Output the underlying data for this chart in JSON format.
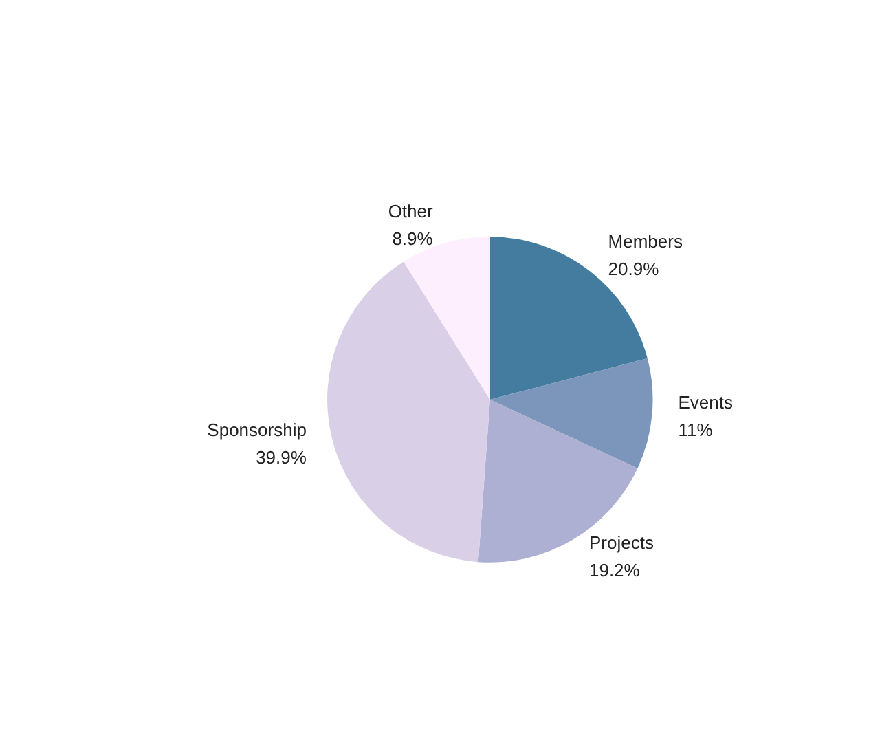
{
  "chart_data": {
    "type": "pie",
    "categories": [
      "Members",
      "Events",
      "Projects",
      "Sponsorship",
      "Other"
    ],
    "values": [
      20.9,
      11,
      19.2,
      39.9,
      8.9
    ],
    "colors": [
      "#437c9e",
      "#7c96bb",
      "#adb0d2",
      "#d9cfe7",
      "#fdeffd"
    ],
    "value_labels": [
      "20.9%",
      "11%",
      "19.2%",
      "39.9%",
      "8.9%"
    ],
    "legend": false
  }
}
